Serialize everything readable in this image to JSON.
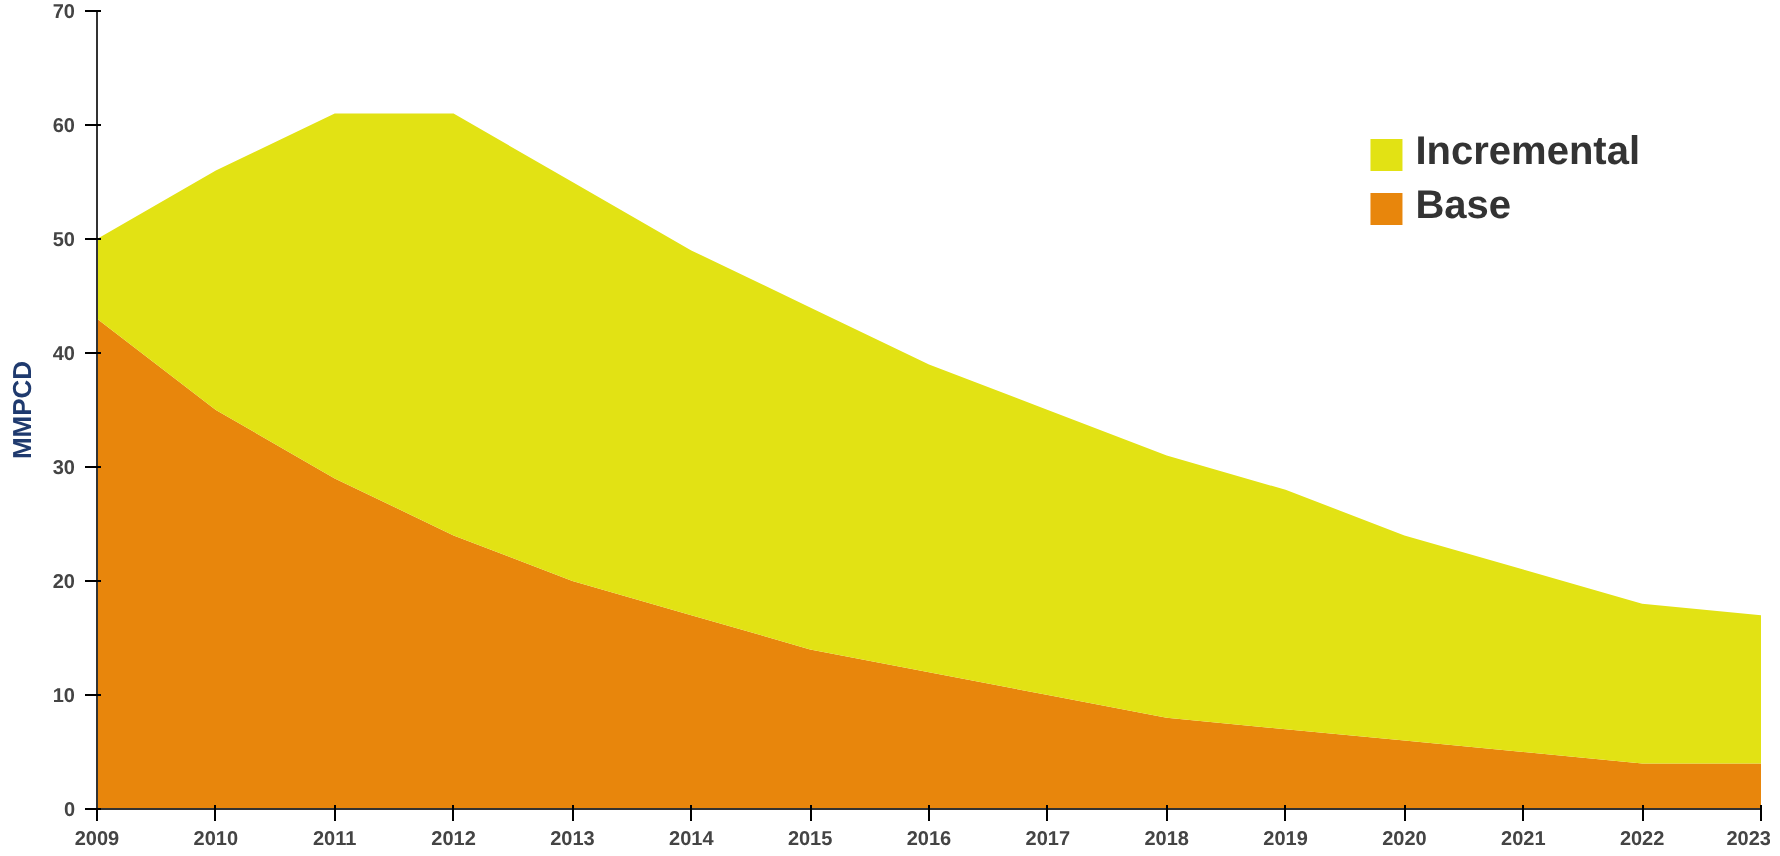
{
  "chart_data": {
    "type": "area",
    "stacked": true,
    "ylabel": "MMPCD",
    "x": [
      2009,
      2010,
      2011,
      2012,
      2013,
      2014,
      2015,
      2016,
      2017,
      2018,
      2019,
      2020,
      2021,
      2022,
      2023
    ],
    "series": [
      {
        "name": "Base",
        "color": "#e8860c",
        "values": [
          43,
          35,
          29,
          24,
          20,
          17,
          14,
          12,
          10,
          8,
          7,
          6,
          5,
          4,
          4
        ]
      },
      {
        "name": "Incremental",
        "color": "#e2e214",
        "values": [
          7,
          21,
          32,
          37,
          35,
          32,
          30,
          27,
          25,
          23,
          21,
          18,
          16,
          14,
          13
        ]
      }
    ],
    "xlim": [
      2009,
      2023
    ],
    "xticks": [
      2009,
      2010,
      2011,
      2012,
      2013,
      2014,
      2015,
      2016,
      2017,
      2018,
      2019,
      2020,
      2021,
      2022,
      2023
    ],
    "ylim": [
      0,
      70
    ],
    "yticks": [
      0,
      10,
      20,
      30,
      40,
      50,
      60,
      70
    ],
    "grid": false,
    "legend": "top right"
  }
}
